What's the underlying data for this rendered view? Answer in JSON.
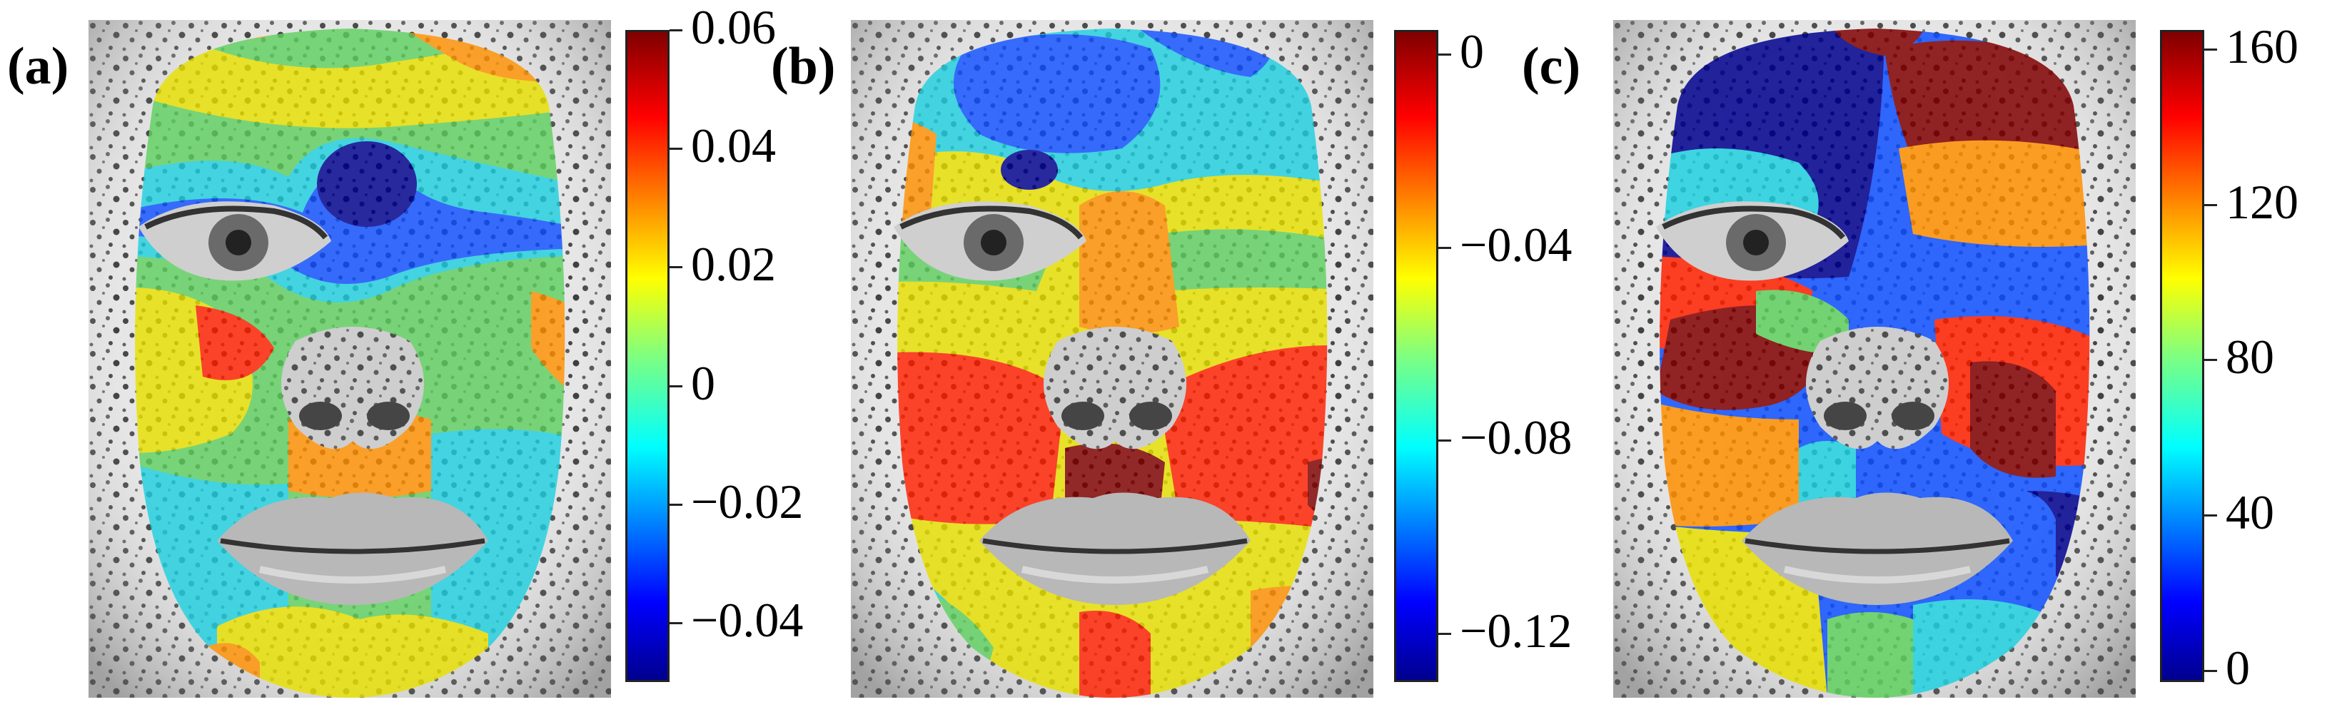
{
  "panels": [
    {
      "label": "(a)",
      "colorbar": {
        "min": -0.05,
        "max": 0.06,
        "ticks": [
          {
            "value": 0.06,
            "text": "0.06"
          },
          {
            "value": 0.04,
            "text": "0.04"
          },
          {
            "value": 0.02,
            "text": "0.02"
          },
          {
            "value": 0.0,
            "text": "0"
          },
          {
            "value": -0.02,
            "text": "−0.02"
          },
          {
            "value": -0.04,
            "text": "−0.04"
          }
        ]
      }
    },
    {
      "label": "(b)",
      "colorbar": {
        "min": -0.13,
        "max": 0.005,
        "ticks": [
          {
            "value": 0.0,
            "text": "0"
          },
          {
            "value": -0.04,
            "text": "−0.04"
          },
          {
            "value": -0.08,
            "text": "−0.08"
          },
          {
            "value": -0.12,
            "text": "−0.12"
          }
        ]
      }
    },
    {
      "label": "(c)",
      "colorbar": {
        "min": -3,
        "max": 165,
        "ticks": [
          {
            "value": 160,
            "text": "160"
          },
          {
            "value": 120,
            "text": "120"
          },
          {
            "value": 80,
            "text": "80"
          },
          {
            "value": 40,
            "text": "40"
          },
          {
            "value": 0,
            "text": "0"
          }
        ]
      }
    }
  ],
  "colormap": "jet",
  "colors": {
    "dark_red": "#800000",
    "red": "#ff2000",
    "orange": "#ff9000",
    "yellow": "#e8e000",
    "green": "#60d060",
    "cyan": "#20d0e0",
    "blue": "#1050ff",
    "dark_blue": "#00008f"
  }
}
